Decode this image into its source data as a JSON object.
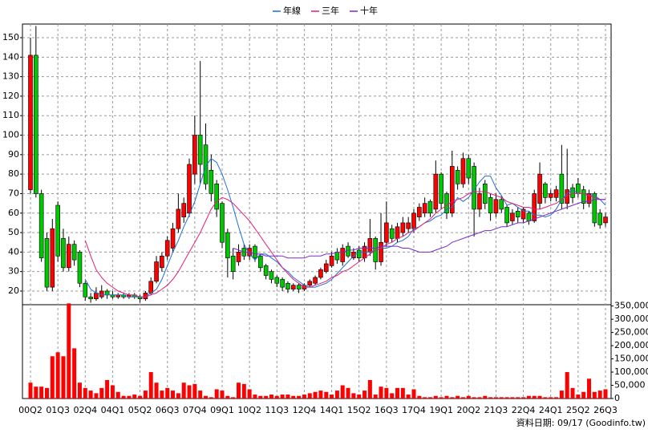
{
  "chart_data": {
    "type": "candlestick",
    "categories": [
      "00Q2",
      null,
      null,
      null,
      null,
      "01Q3",
      null,
      null,
      null,
      null,
      "02Q4",
      null,
      null,
      null,
      null,
      "04Q1",
      null,
      null,
      null,
      null,
      "05Q2",
      null,
      null,
      null,
      null,
      "06Q3",
      null,
      null,
      null,
      null,
      "07Q4",
      null,
      null,
      null,
      null,
      "09Q1",
      null,
      null,
      null,
      null,
      "10Q2",
      null,
      null,
      null,
      null,
      "11Q3",
      null,
      null,
      null,
      null,
      "12Q4",
      null,
      null,
      null,
      null,
      "14Q1",
      null,
      null,
      null,
      null,
      "15Q2",
      null,
      null,
      null,
      null,
      "16Q3",
      null,
      null,
      null,
      null,
      "17Q4",
      null,
      null,
      null,
      null,
      "19Q1",
      null,
      null,
      null,
      null,
      "20Q2",
      null,
      null,
      null,
      null,
      "21Q3",
      null,
      null,
      null,
      null,
      "22Q4",
      null,
      null,
      null,
      null,
      "24Q1",
      null,
      null,
      null,
      null,
      "25Q2",
      null,
      null,
      null,
      null,
      "26Q3"
    ],
    "open": [
      72,
      141,
      70,
      47,
      22,
      64,
      47,
      32,
      44,
      40,
      24,
      17,
      16,
      17,
      20,
      18,
      17,
      18,
      17,
      18,
      17,
      16,
      19,
      25,
      32,
      38,
      42,
      52,
      58,
      60,
      80,
      100,
      95,
      82,
      75,
      65,
      50,
      38,
      35,
      42,
      38,
      43,
      38,
      33,
      30,
      27,
      26,
      24,
      21,
      23,
      21,
      23,
      24,
      27,
      30,
      33,
      40,
      35,
      43,
      37,
      41,
      37,
      40,
      47,
      35,
      45,
      52,
      47,
      50,
      52,
      52,
      58,
      60,
      66,
      62,
      80,
      70,
      60,
      82,
      75,
      88,
      84,
      62,
      75,
      68,
      60,
      67,
      63,
      56,
      61,
      57,
      60,
      56,
      65,
      75,
      68,
      68,
      80,
      65,
      73,
      75,
      72,
      65,
      70,
      60,
      55
    ],
    "high": [
      150,
      156,
      72,
      50,
      57,
      66,
      52,
      48,
      46,
      41,
      25,
      19,
      22,
      23,
      21,
      20,
      19,
      19,
      19,
      19,
      18,
      20,
      27,
      38,
      40,
      48,
      55,
      70,
      68,
      88,
      110,
      138,
      106,
      90,
      77,
      66,
      52,
      42,
      44,
      44,
      44,
      44,
      39,
      34,
      31,
      28,
      27,
      25,
      24,
      24,
      24,
      26,
      28,
      32,
      36,
      40,
      42,
      44,
      45,
      42,
      43,
      45,
      57,
      48,
      60,
      66,
      54,
      55,
      58,
      58,
      62,
      65,
      68,
      67,
      87,
      81,
      71,
      92,
      84,
      91,
      90,
      86,
      73,
      77,
      70,
      70,
      69,
      64,
      62,
      63,
      63,
      61,
      72,
      86,
      76,
      72,
      74,
      95,
      93,
      75,
      78,
      74,
      72,
      71,
      62,
      60
    ],
    "low": [
      70,
      68,
      35,
      20,
      20,
      35,
      30,
      30,
      33,
      22,
      15,
      14,
      15,
      16,
      16,
      16,
      16,
      16,
      16,
      16,
      14,
      15,
      18,
      24,
      30,
      36,
      40,
      50,
      55,
      58,
      75,
      75,
      72,
      66,
      58,
      42,
      27,
      26,
      33,
      36,
      36,
      35,
      30,
      26,
      24,
      22,
      20,
      19,
      20,
      19,
      20,
      22,
      23,
      26,
      29,
      32,
      34,
      33,
      37,
      36,
      35,
      35,
      38,
      31,
      33,
      43,
      45,
      45,
      48,
      50,
      50,
      56,
      58,
      58,
      60,
      62,
      57,
      58,
      72,
      73,
      75,
      48,
      58,
      62,
      56,
      58,
      60,
      53,
      54,
      55,
      55,
      54,
      55,
      62,
      65,
      66,
      66,
      62,
      62,
      65,
      68,
      62,
      63,
      53,
      52,
      53
    ],
    "close": [
      141,
      70,
      37,
      22,
      52,
      38,
      32,
      44,
      36,
      24,
      17,
      16,
      19,
      20,
      18,
      17,
      18,
      17,
      18,
      17,
      16,
      19,
      25,
      35,
      38,
      46,
      52,
      62,
      65,
      85,
      100,
      85,
      75,
      70,
      62,
      45,
      37,
      30,
      40,
      38,
      42,
      37,
      32,
      28,
      26,
      24,
      22,
      21,
      23,
      21,
      23,
      25,
      27,
      31,
      34,
      38,
      36,
      42,
      38,
      40,
      37,
      43,
      47,
      35,
      45,
      55,
      47,
      53,
      55,
      55,
      60,
      63,
      65,
      60,
      80,
      65,
      60,
      84,
      75,
      88,
      78,
      62,
      70,
      65,
      60,
      67,
      62,
      55,
      60,
      58,
      62,
      56,
      70,
      80,
      68,
      70,
      72,
      65,
      72,
      68,
      70,
      65,
      70,
      55,
      54,
      58
    ],
    "up_color": "#ff0000",
    "down_color": "#00c800",
    "series": [
      {
        "name": "年線",
        "color": "#1e6fd9",
        "values": [
          null,
          null,
          null,
          null,
          null,
          null,
          null,
          null,
          null,
          null,
          26,
          21,
          19,
          18,
          18,
          18,
          18,
          18,
          17,
          17,
          17,
          17,
          19,
          21,
          26,
          33,
          40,
          46,
          53,
          59,
          66,
          75,
          84,
          88,
          86,
          80,
          72,
          63,
          53,
          44,
          39,
          36,
          39,
          39,
          37,
          35,
          32,
          30,
          27,
          25,
          23,
          22,
          22,
          23,
          24,
          26,
          29,
          32,
          35,
          38,
          40,
          40,
          40,
          41,
          42,
          42,
          43,
          45,
          46,
          48,
          52,
          53,
          55,
          56,
          58,
          59,
          62,
          63,
          68,
          66,
          68,
          72,
          76,
          79,
          79,
          73,
          69,
          64,
          65,
          63,
          61,
          61,
          59,
          59,
          58,
          59,
          62,
          67,
          70,
          72,
          70,
          70,
          69,
          69,
          67,
          64
        ]
      },
      {
        "name": "三年",
        "color": "#e0207a",
        "values": [
          null,
          null,
          null,
          null,
          null,
          null,
          null,
          null,
          null,
          null,
          46,
          38,
          31,
          27,
          24,
          22,
          20,
          19,
          18,
          18,
          17,
          17,
          18,
          19,
          21,
          23,
          26,
          30,
          35,
          40,
          45,
          50,
          56,
          62,
          66,
          68,
          67,
          65,
          62,
          59,
          56,
          52,
          48,
          44,
          40,
          36,
          32,
          29,
          26,
          24,
          22,
          22,
          23,
          24,
          25,
          27,
          28,
          30,
          31,
          33,
          35,
          37,
          39,
          41,
          42,
          44,
          45,
          47,
          48,
          50,
          51,
          53,
          55,
          57,
          60,
          62,
          64,
          66,
          67,
          68,
          70,
          71,
          71,
          71,
          70,
          69,
          68,
          66,
          65,
          64,
          63,
          63,
          62,
          62,
          63,
          64,
          65,
          67,
          69,
          70,
          70,
          70,
          69,
          68,
          67,
          67
        ]
      },
      {
        "name": "十年",
        "color": "#7a2ac8",
        "values": [
          null,
          null,
          null,
          null,
          null,
          null,
          null,
          null,
          null,
          null,
          null,
          null,
          null,
          null,
          null,
          null,
          null,
          null,
          null,
          null,
          null,
          null,
          null,
          null,
          null,
          null,
          null,
          null,
          null,
          null,
          null,
          null,
          null,
          null,
          null,
          null,
          null,
          42,
          41,
          40,
          40,
          39,
          39,
          38,
          38,
          38,
          38,
          37,
          37,
          37,
          37,
          38,
          38,
          38,
          39,
          39,
          40,
          40,
          41,
          41,
          42,
          42,
          42,
          42,
          43,
          43,
          43,
          43,
          42,
          42,
          41,
          40,
          40,
          40,
          41,
          42,
          43,
          45,
          46,
          47,
          48,
          49,
          50,
          51,
          51,
          52,
          53,
          53,
          54,
          55,
          55,
          56,
          57,
          58,
          59,
          60,
          61,
          62,
          63,
          64,
          65,
          66,
          66,
          67,
          67,
          67
        ]
      }
    ],
    "ylim": [
      13,
      157
    ],
    "yticks": [
      20,
      30,
      40,
      50,
      60,
      70,
      80,
      90,
      100,
      110,
      120,
      130,
      140,
      150
    ],
    "grid": true,
    "volume": {
      "color": "#ff0000",
      "values": [
        60000,
        45000,
        45000,
        40000,
        160000,
        175000,
        160000,
        360000,
        190000,
        60000,
        40000,
        30000,
        20000,
        40000,
        70000,
        50000,
        25000,
        10000,
        10000,
        15000,
        10000,
        30000,
        100000,
        60000,
        30000,
        40000,
        30000,
        20000,
        60000,
        50000,
        55000,
        30000,
        10000,
        5000,
        35000,
        30000,
        10000,
        5000,
        60000,
        55000,
        35000,
        15000,
        10000,
        10000,
        15000,
        10000,
        15000,
        15000,
        10000,
        10000,
        15000,
        20000,
        25000,
        30000,
        25000,
        15000,
        30000,
        50000,
        40000,
        20000,
        15000,
        30000,
        70000,
        15000,
        45000,
        40000,
        20000,
        40000,
        40000,
        15000,
        35000,
        10000,
        5000,
        5000,
        10000,
        5000,
        10000,
        5000,
        10000,
        5000,
        10000,
        5000,
        5000,
        10000,
        5000,
        5000,
        5000,
        5000,
        5000,
        5000,
        5000,
        10000,
        10000,
        10000,
        5000,
        5000,
        5000,
        30000,
        100000,
        40000,
        15000,
        25000,
        75000,
        25000,
        30000,
        35000
      ],
      "ylim": [
        0,
        355000
      ],
      "yticks": [
        0,
        {
          "value": 50000,
          "label": "50,000"
        },
        {
          "value": 100000,
          "label": "100,000"
        },
        {
          "value": 150000,
          "label": "150,000"
        },
        {
          "value": 200000,
          "label": "200,000"
        },
        {
          "value": 250000,
          "label": "250,000"
        },
        {
          "value": 300000,
          "label": "300,000"
        },
        {
          "value": 350000,
          "label": "350,000"
        }
      ]
    },
    "footer": "資料日期: 09/17  (Goodinfo.tw)"
  }
}
